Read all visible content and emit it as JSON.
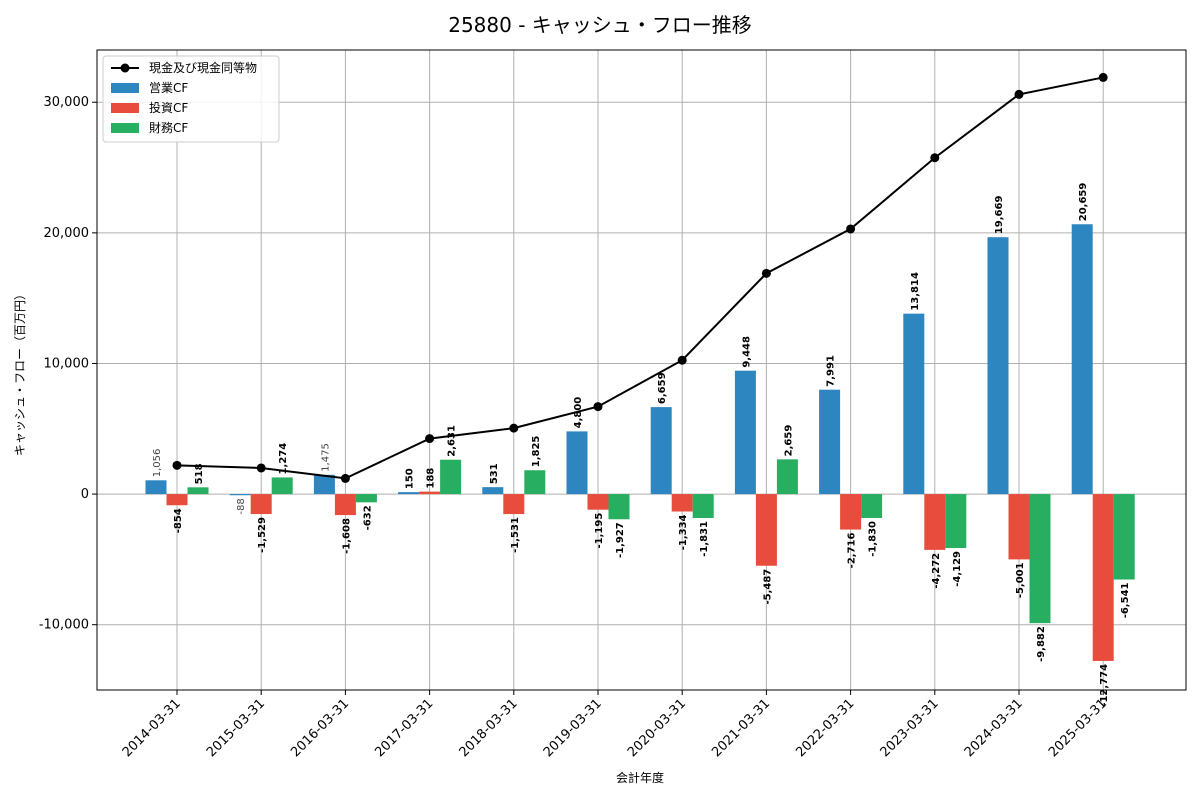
{
  "chart_data": {
    "type": "bar",
    "title": "25880 - キャッシュ・フロー推移",
    "xlabel": "会計年度",
    "ylabel": "キャッシュ・フロー（百万円）",
    "categories": [
      "2014-03-31",
      "2015-03-31",
      "2016-03-31",
      "2017-03-31",
      "2018-03-31",
      "2019-03-31",
      "2020-03-31",
      "2021-03-31",
      "2022-03-31",
      "2023-03-31",
      "2024-03-31",
      "2025-03-31"
    ],
    "ylim": [
      -15000,
      34000
    ],
    "yticks": [
      -10000,
      0,
      10000,
      20000,
      30000
    ],
    "ytick_labels": [
      "-10,000",
      "0",
      "10,000",
      "20,000",
      "30,000"
    ],
    "grid": true,
    "legend_position": "top-left",
    "series": [
      {
        "name": "営業CF",
        "kind": "bar",
        "color": "#2e86c1",
        "values": [
          1056,
          -88,
          1475,
          150,
          531,
          4800,
          6659,
          9448,
          7991,
          13814,
          19669,
          20659
        ],
        "labels": [
          "1,056",
          "-88",
          "1,475",
          "150",
          "531",
          "4,800",
          "6,659",
          "9,448",
          "7,991",
          "13,814",
          "19,669",
          "20,659"
        ]
      },
      {
        "name": "投資CF",
        "kind": "bar",
        "color": "#e74c3c",
        "values": [
          -854,
          -1529,
          -1608,
          188,
          -1531,
          -1195,
          -1334,
          -5487,
          -2716,
          -4272,
          -5001,
          -12774
        ],
        "labels": [
          "-854",
          "-1,529",
          "-1,608",
          "188",
          "-1,531",
          "-1,195",
          "-1,334",
          "-5,487",
          "-2,716",
          "-4,272",
          "-5,001",
          "-12,774"
        ]
      },
      {
        "name": "財務CF",
        "kind": "bar",
        "color": "#27ae60",
        "values": [
          518,
          1274,
          -632,
          2631,
          1825,
          -1927,
          -1831,
          2659,
          -1830,
          -4129,
          -9882,
          -6541
        ],
        "labels": [
          "518",
          "1,274",
          "-632",
          "2,631",
          "1,825",
          "-1,927",
          "-1,831",
          "2,659",
          "-1,830",
          "-4,129",
          "-9,882",
          "-6,541"
        ]
      },
      {
        "name": "現金及び現金同等物",
        "kind": "line",
        "color": "#000000",
        "values": [
          2200,
          2000,
          1200,
          4250,
          5050,
          6700,
          10250,
          16900,
          20300,
          25750,
          30600,
          31900
        ]
      }
    ]
  }
}
